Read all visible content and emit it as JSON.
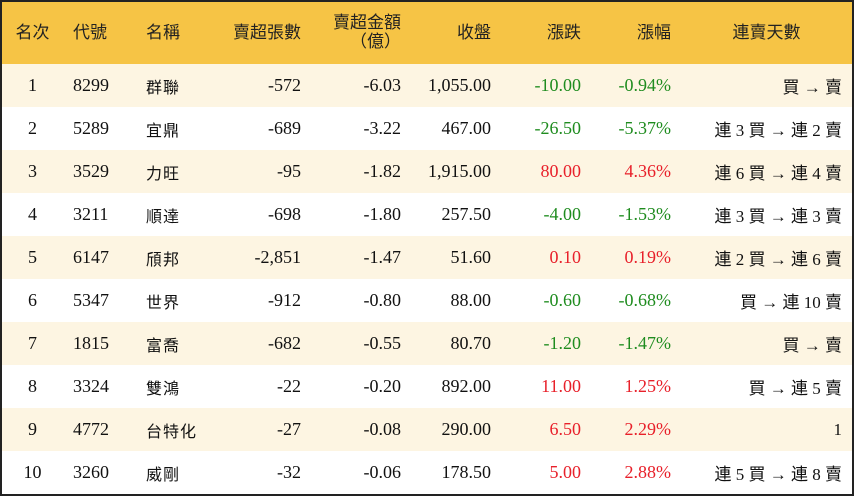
{
  "table": {
    "headers": [
      "名次",
      "代號",
      "名稱",
      "賣超張數",
      "賣超金額\n（億）",
      "收盤",
      "漲跌",
      "漲幅",
      "連賣天數"
    ],
    "rows": [
      [
        "1",
        "8299",
        "群聯",
        "-572",
        "-6.03",
        "1,055.00",
        "-10.00",
        "-0.94%",
        "買 → 賣"
      ],
      [
        "2",
        "5289",
        "宜鼎",
        "-689",
        "-3.22",
        "467.00",
        "-26.50",
        "-5.37%",
        "連 3 買 → 連 2 賣"
      ],
      [
        "3",
        "3529",
        "力旺",
        "-95",
        "-1.82",
        "1,915.00",
        "80.00",
        "4.36%",
        "連 6 買 → 連 4 賣"
      ],
      [
        "4",
        "3211",
        "順達",
        "-698",
        "-1.80",
        "257.50",
        "-4.00",
        "-1.53%",
        "連 3 買 → 連 3 賣"
      ],
      [
        "5",
        "6147",
        "頎邦",
        "-2,851",
        "-1.47",
        "51.60",
        "0.10",
        "0.19%",
        "連 2 買 → 連 6 賣"
      ],
      [
        "6",
        "5347",
        "世界",
        "-912",
        "-0.80",
        "88.00",
        "-0.60",
        "-0.68%",
        "買 → 連 10 賣"
      ],
      [
        "7",
        "1815",
        "富喬",
        "-682",
        "-0.55",
        "80.70",
        "-1.20",
        "-1.47%",
        "買 → 賣"
      ],
      [
        "8",
        "3324",
        "雙鴻",
        "-22",
        "-0.20",
        "892.00",
        "11.00",
        "1.25%",
        "買 → 連 5 賣"
      ],
      [
        "9",
        "4772",
        "台特化",
        "-27",
        "-0.08",
        "290.00",
        "6.50",
        "2.29%",
        "1"
      ],
      [
        "10",
        "3260",
        "威剛",
        "-32",
        "-0.06",
        "178.50",
        "5.00",
        "2.88%",
        "連 5 買 → 連 8 賣"
      ]
    ]
  }
}
